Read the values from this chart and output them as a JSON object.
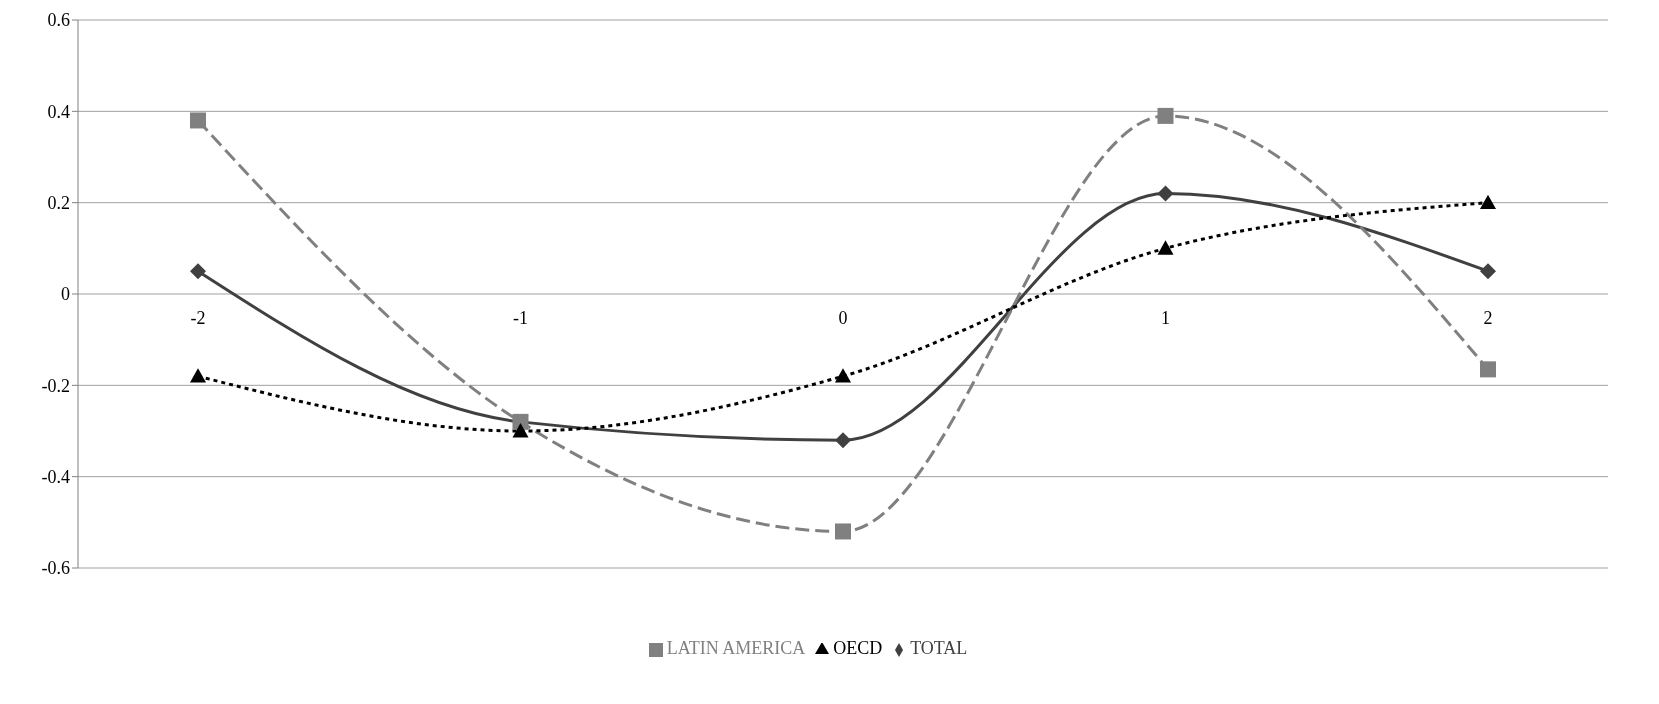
{
  "chart_data": {
    "type": "line",
    "categories": [
      "-2",
      "-1",
      "0",
      "1",
      "2"
    ],
    "series": [
      {
        "name": "TOTAL",
        "color": "#404040",
        "marker": "diamond",
        "line_style": "solid",
        "values": [
          0.05,
          -0.28,
          -0.32,
          0.22,
          0.05
        ]
      },
      {
        "name": "LATIN AMERICA",
        "color": "#808080",
        "marker": "square",
        "line_style": "dashed",
        "values": [
          0.38,
          -0.28,
          -0.52,
          0.39,
          -0.165
        ]
      },
      {
        "name": "OECD",
        "color": "#000000",
        "marker": "triangle",
        "line_style": "dotted",
        "values": [
          -0.18,
          -0.3,
          -0.18,
          0.1,
          0.2
        ]
      }
    ],
    "ylim": [
      -0.6,
      0.6
    ],
    "yticks": [
      -0.6,
      -0.4,
      -0.2,
      0,
      0.2,
      0.4,
      0.6
    ],
    "grid": "y",
    "legend": "bottom"
  }
}
